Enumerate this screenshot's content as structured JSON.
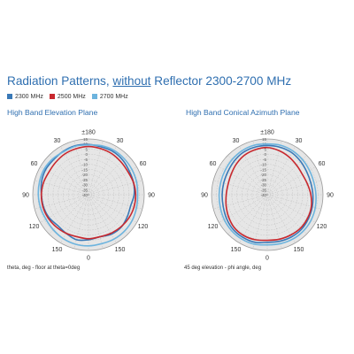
{
  "title": {
    "prefix": "Radiation Patterns, ",
    "underlined": "without",
    "suffix": " Reflector 2300-2700 MHz"
  },
  "legend": [
    {
      "label": "2300 MHz",
      "color": "#3a79b7"
    },
    {
      "label": "2500 MHz",
      "color": "#c8282e"
    },
    {
      "label": "2700 MHz",
      "color": "#6db4de"
    }
  ],
  "chart_data": [
    {
      "type": "polar-line",
      "title": "High Band Elevation Plane",
      "footnote": "theta, deg - floor at theta=0deg",
      "angle_labels": [
        "±180",
        "30",
        "60",
        "90",
        "120",
        "150",
        "0",
        "150",
        "120",
        "90",
        "60",
        "30"
      ],
      "radial_labels": [
        "15",
        "10",
        "5",
        "0",
        "-5",
        "-10",
        "-15",
        "-20",
        "-25",
        "-30",
        "-35",
        "-40"
      ],
      "rlim": [
        -40,
        15
      ],
      "series": [
        {
          "name": "2300 MHz",
          "color": "#3a79b7",
          "values": [
            9.5,
            8.8,
            9.0,
            8.0,
            6.5,
            6.0,
            5.0,
            3.0,
            4.0,
            5.5,
            5.0,
            3.0,
            4.5,
            6.0,
            4.0,
            3.0,
            5.0,
            6.0,
            6.5,
            8.0,
            9.0,
            8.8,
            9.5,
            10.0
          ]
        },
        {
          "name": "2500 MHz",
          "color": "#c8282e",
          "values": [
            7.5,
            7.0,
            6.5,
            5.5,
            5.0,
            6.0,
            6.5,
            6.5,
            6.0,
            5.0,
            4.0,
            3.0,
            3.5,
            3.0,
            4.0,
            5.0,
            6.0,
            6.5,
            6.5,
            6.0,
            5.0,
            5.5,
            6.5,
            7.0
          ]
        },
        {
          "name": "2700 MHz",
          "color": "#6db4de",
          "values": [
            9.0,
            10.0,
            10.5,
            10.0,
            9.5,
            9.0,
            8.5,
            9.0,
            10.0,
            10.5,
            10.5,
            10.0,
            10.5,
            10.5,
            10.0,
            9.0,
            8.5,
            9.0,
            9.5,
            10.0,
            10.5,
            10.0,
            9.0,
            9.5
          ]
        }
      ]
    },
    {
      "type": "polar-line",
      "title": "High Band Conical Azimuth Plane",
      "footnote": "45 deg elevation - phi angle, deg",
      "angle_labels": [
        "±180",
        "30",
        "60",
        "90",
        "120",
        "150",
        "0",
        "150",
        "120",
        "90",
        "60",
        "30"
      ],
      "radial_labels": [
        "15",
        "10",
        "5",
        "0",
        "-5",
        "-10",
        "-15",
        "-20",
        "-25",
        "-30",
        "-35",
        "-40"
      ],
      "rlim": [
        -40,
        15
      ],
      "series": [
        {
          "name": "2300 MHz",
          "color": "#3a79b7",
          "values": [
            8.5,
            8.5,
            8.0,
            6.5,
            5.0,
            4.5,
            5.0,
            6.0,
            7.0,
            8.0,
            8.0,
            7.5,
            7.0,
            8.5,
            8.5,
            8.0,
            6.5,
            5.0,
            4.5,
            4.5,
            5.0,
            6.5,
            8.0,
            8.5
          ]
        },
        {
          "name": "2500 MHz",
          "color": "#c8282e",
          "values": [
            6.5,
            5.0,
            3.0,
            1.0,
            0.0,
            1.0,
            3.0,
            5.0,
            6.0,
            6.5,
            6.0,
            5.5,
            5.0,
            6.0,
            6.5,
            6.0,
            4.0,
            2.0,
            0.5,
            0.0,
            1.0,
            3.0,
            5.0,
            6.0
          ]
        },
        {
          "name": "2700 MHz",
          "color": "#6db4de",
          "values": [
            10.0,
            10.5,
            10.0,
            9.0,
            8.0,
            7.5,
            8.0,
            9.0,
            10.0,
            10.5,
            10.5,
            10.0,
            9.5,
            10.5,
            10.5,
            10.0,
            9.0,
            8.0,
            7.5,
            7.5,
            8.0,
            9.0,
            10.0,
            10.5
          ]
        }
      ]
    }
  ]
}
